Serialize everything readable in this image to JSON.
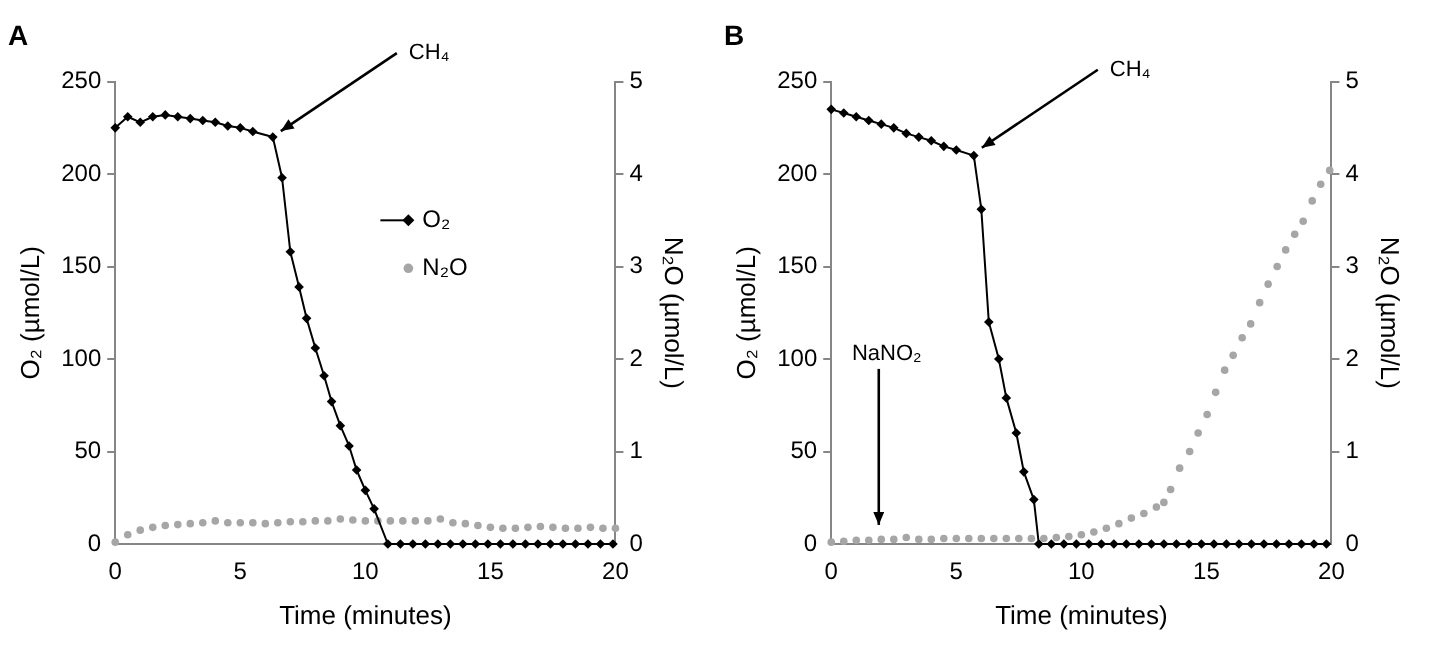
{
  "chart_data": [
    {
      "type": "line",
      "title": "A",
      "xlabel": "Time (minutes)",
      "ylabel": "O₂ (µmol/L)",
      "y2label": "N₂O (µmol/L)",
      "xlim": [
        0,
        20
      ],
      "xticks": [
        0,
        5,
        10,
        15,
        20
      ],
      "ylim": [
        0,
        250
      ],
      "yticks": [
        0,
        50,
        100,
        150,
        200,
        250
      ],
      "y2lim": [
        0,
        5
      ],
      "y2ticks": [
        0,
        1,
        2,
        3,
        4,
        5
      ],
      "grid": false,
      "legend": "right",
      "annotations": [
        {
          "text": "CH₄",
          "x": 6.3,
          "y": 220
        }
      ],
      "series": [
        {
          "name": "O₂",
          "type": "line",
          "marker": "diamond",
          "line_style": "solid",
          "color": "#000000",
          "x": [
            0,
            0.5,
            1,
            1.5,
            2,
            2.5,
            3,
            3.5,
            4,
            4.5,
            5,
            5.5,
            6.3,
            6.67,
            7,
            7.35,
            7.65,
            8,
            8.35,
            8.65,
            9,
            9.35,
            9.65,
            10,
            10.35,
            10.9,
            11.4,
            11.9,
            12.4,
            12.9,
            13.4,
            13.9,
            14.4,
            14.9,
            15.4,
            15.9,
            16.4,
            16.9,
            17.4,
            17.9,
            18.4,
            18.9,
            19.4,
            19.9
          ],
          "values": [
            225,
            231,
            228,
            231,
            232,
            231,
            230,
            229,
            228,
            226,
            225,
            223,
            220,
            198,
            158,
            139,
            122,
            106,
            91,
            77,
            64,
            53,
            40,
            29,
            19,
            0,
            0,
            0,
            0,
            0,
            0,
            0,
            0,
            0,
            0,
            0,
            0,
            0,
            0,
            0,
            0,
            0,
            0,
            0
          ]
        },
        {
          "name": "N₂O",
          "type": "scatter",
          "marker": "circle",
          "axis": "y2",
          "color": "#a6a6a6",
          "x": [
            0,
            0.5,
            1,
            1.5,
            2,
            2.5,
            3,
            3.5,
            4,
            4.5,
            5,
            5.5,
            6,
            6.5,
            7,
            7.5,
            8,
            8.5,
            9,
            9.5,
            10,
            10.5,
            11,
            11.5,
            12,
            12.5,
            13,
            13.5,
            14,
            14.5,
            15,
            15.5,
            16,
            16.5,
            17,
            17.5,
            18,
            18.5,
            19,
            19.5,
            20
          ],
          "values": [
            0.02,
            0.1,
            0.15,
            0.18,
            0.2,
            0.21,
            0.22,
            0.23,
            0.25,
            0.23,
            0.23,
            0.23,
            0.22,
            0.23,
            0.24,
            0.24,
            0.25,
            0.25,
            0.27,
            0.26,
            0.25,
            0.25,
            0.25,
            0.25,
            0.25,
            0.25,
            0.27,
            0.23,
            0.22,
            0.2,
            0.18,
            0.17,
            0.17,
            0.18,
            0.19,
            0.18,
            0.17,
            0.17,
            0.18,
            0.17,
            0.17
          ]
        }
      ]
    },
    {
      "type": "line",
      "title": "B",
      "xlabel": "Time (minutes)",
      "ylabel": "O₂ (µmol/L)",
      "y2label": "N₂O (µmol/L)",
      "xlim": [
        0,
        20
      ],
      "xticks": [
        0,
        5,
        10,
        15,
        20
      ],
      "ylim": [
        0,
        250
      ],
      "yticks": [
        0,
        50,
        100,
        150,
        200,
        250
      ],
      "y2lim": [
        0,
        5
      ],
      "y2ticks": [
        0,
        1,
        2,
        3,
        4,
        5
      ],
      "grid": false,
      "legend": false,
      "annotations": [
        {
          "text": "CH₄",
          "x": 5.7,
          "y": 211
        },
        {
          "text": "NaNO₂",
          "x": 1.9,
          "y": 6
        }
      ],
      "series": [
        {
          "type": "line",
          "marker": "diamond",
          "line_style": "solid",
          "color": "#000000",
          "x": [
            0,
            0.5,
            1,
            1.5,
            2,
            2.5,
            3,
            3.5,
            4,
            4.5,
            5,
            5.7,
            6,
            6.3,
            6.7,
            7,
            7.4,
            7.7,
            8.1,
            8.3,
            8.8,
            9.3,
            9.8,
            10.3,
            10.8,
            11.3,
            11.8,
            12.3,
            12.8,
            13.3,
            13.8,
            14.3,
            14.8,
            15.3,
            15.8,
            16.3,
            16.8,
            17.3,
            17.8,
            18.3,
            18.8,
            19.3,
            19.8
          ],
          "values": [
            235,
            233,
            231,
            229,
            227,
            225,
            222,
            220,
            218,
            215,
            213,
            210,
            181,
            120,
            100,
            79,
            60,
            39,
            24,
            0,
            0,
            0,
            0,
            0,
            0,
            0,
            0,
            0,
            0,
            0,
            0,
            0,
            0,
            0,
            0,
            0,
            0,
            0,
            0,
            0,
            0,
            0,
            0
          ]
        },
        {
          "type": "scatter",
          "marker": "circle",
          "axis": "y2",
          "color": "#a6a6a6",
          "x": [
            0,
            0.5,
            1,
            1.5,
            2,
            2.5,
            3,
            3.5,
            4,
            4.5,
            5,
            5.5,
            6,
            6.5,
            7,
            7.5,
            8,
            8.5,
            9,
            9.5,
            10,
            10.5,
            11,
            11.5,
            12,
            12.5,
            13,
            13.3,
            13.57,
            13.93,
            14.33,
            14.67,
            15.03,
            15.37,
            15.73,
            16.07,
            16.43,
            16.77,
            17.13,
            17.47,
            17.83,
            18.17,
            18.53,
            18.87,
            19.23,
            19.57,
            19.93
          ],
          "values": [
            0.02,
            0.03,
            0.04,
            0.04,
            0.05,
            0.05,
            0.07,
            0.05,
            0.05,
            0.06,
            0.06,
            0.06,
            0.06,
            0.06,
            0.06,
            0.06,
            0.06,
            0.06,
            0.07,
            0.08,
            0.1,
            0.13,
            0.17,
            0.22,
            0.28,
            0.33,
            0.4,
            0.45,
            0.59,
            0.82,
            1.0,
            1.2,
            1.4,
            1.64,
            1.88,
            2.04,
            2.23,
            2.38,
            2.61,
            2.81,
            3.0,
            3.18,
            3.35,
            3.49,
            3.71,
            3.89,
            4.04
          ]
        }
      ]
    }
  ]
}
